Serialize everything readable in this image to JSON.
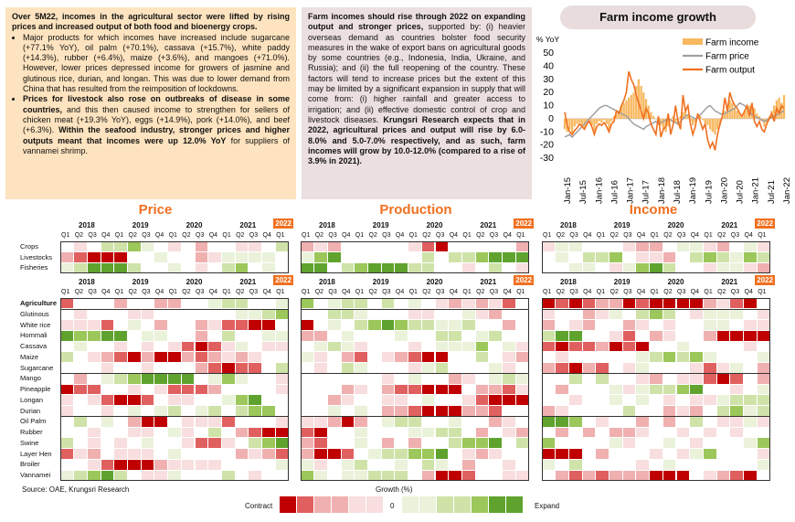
{
  "box1": {
    "intro": "Over 5M22, incomes in the agricultural sector were lifted by rising prices and increased output of both food and bioenergy crops.",
    "bullet1": "Major products for which incomes have increased include sugarcane (+77.1% YoY), oil palm (+70.1%), cassava (+15.7%), white paddy (+14.3%), rubber (+6.4%), maize (+3.6%), and mangoes (+71.0%). However, lower prices depressed income for growers of jasmine and glutinous rice, durian, and longan. This was due to lower demand from China that has resulted from the reimposition of lockdowns.",
    "bullet2_b1": "Prices for livestock also rose on outbreaks of disease in some countries,",
    "bullet2_t1": " and this then caused income to strengthen for sellers of chicken meat (+19.3% YoY), eggs (+14.9%), pork (+14.0%), and beef (+6.3%). ",
    "bullet2_b2": "Within the seafood industry, stronger prices and higher outputs meant that incomes were up 12.0% YoY",
    "bullet2_t2": " for suppliers of vannamei shrimp."
  },
  "box2": {
    "b1": "Farm incomes should rise through 2022 on expanding output and stronger prices,",
    "t1": " supported by: (i) heavier overseas demand as countries bolster food security measures in the wake of export bans on agricultural goods by some countries (e.g., Indonesia, India, Ukraine, and Russia); and (ii) the full reopening of the country. These factors will tend to increase prices but the extent of this may be limited by a significant expansion in supply that will come from: (i) higher rainfall and greater access to irrigation; and (ii) effective domestic control of crop and livestock diseases. ",
    "b2": "Krungsri Research expects that in 2022, agricultural prices and output will rise by 6.0-8.0% and 5.0-7.0% respectively, and as such, farm incomes will grow by 10.0-12.0% (compared to a rise of 3.9% in 2021)."
  },
  "chart_data": {
    "type": "line",
    "title": "Farm income growth",
    "ylabel": "% YoY",
    "ylim": [
      -30,
      50
    ],
    "yticks": [
      50,
      40,
      30,
      20,
      10,
      0,
      -10,
      -20,
      -30
    ],
    "xticks": [
      "Jan-15",
      "Jul-15",
      "Jan-16",
      "Jul-16",
      "Jan-17",
      "Jul-17",
      "Jan-18",
      "Jul-18",
      "Jan-19",
      "Jul-19",
      "Jan-20",
      "Jul-20",
      "Jan-21",
      "Jul-21",
      "Jan-22"
    ],
    "legend_position": "top-right",
    "series": [
      {
        "name": "Farm income",
        "kind": "bar",
        "color": "#f8b860",
        "values": [
          -8,
          -10,
          -8,
          -12,
          -6,
          -4,
          -3,
          -5,
          -8,
          -3,
          -2,
          -5,
          -10,
          -4,
          -2,
          -3,
          -1,
          -4,
          -8,
          -2,
          2,
          4,
          6,
          10,
          12,
          14,
          16,
          18,
          20,
          25,
          30,
          25,
          20,
          15,
          10,
          5,
          2,
          0,
          -3,
          -5,
          -8,
          -10,
          -6,
          -2,
          2,
          -3,
          -5,
          2,
          5,
          8,
          3,
          -2,
          -5,
          -3,
          0,
          2,
          -1,
          -3,
          -5,
          -8,
          -10,
          -12,
          -8,
          -5,
          2,
          6,
          10,
          14,
          12,
          8,
          6,
          4,
          2,
          6,
          8,
          10,
          12,
          8,
          4,
          2,
          -2,
          -6,
          -3,
          2,
          6,
          10,
          14,
          16,
          12,
          18
        ]
      },
      {
        "name": "Farm price",
        "kind": "line",
        "color": "#a0a0a0",
        "values": [
          -14,
          -13,
          -12,
          -14,
          -12,
          -10,
          -8,
          -6,
          -4,
          -2,
          0,
          2,
          4,
          6,
          8,
          9,
          10,
          10,
          9,
          8,
          7,
          6,
          5,
          4,
          3,
          2,
          0,
          -2,
          -4,
          -5,
          -6,
          -7,
          -8,
          -6,
          -5,
          -4,
          -3,
          -2,
          -4,
          -3,
          -2,
          -1,
          0,
          -1,
          -2,
          -3,
          -4,
          -2,
          0,
          2,
          3,
          2,
          1,
          0,
          1,
          3,
          5,
          7,
          9,
          10,
          8,
          6,
          5,
          4,
          3,
          4,
          5,
          6,
          7,
          8,
          10,
          12,
          11,
          10,
          8,
          6,
          3,
          2,
          1,
          0,
          -1,
          -2,
          -1,
          0,
          1,
          2,
          3,
          4,
          5,
          6
        ]
      },
      {
        "name": "Farm output",
        "kind": "line",
        "color": "#f07020",
        "values": [
          5,
          -5,
          -10,
          -12,
          -9,
          -7,
          -4,
          -6,
          -8,
          -4,
          -2,
          -6,
          -12,
          -6,
          -4,
          -5,
          -3,
          -6,
          -10,
          -4,
          -2,
          6,
          4,
          10,
          14,
          20,
          36,
          30,
          26,
          18,
          12,
          6,
          0,
          8,
          4,
          -4,
          -8,
          -12,
          2,
          -14,
          -8,
          -6,
          4,
          -12,
          -4,
          10,
          -2,
          -8,
          18,
          6,
          10,
          -4,
          -12,
          -6,
          4,
          -2,
          -8,
          -4,
          -16,
          -22,
          -18,
          -24,
          -12,
          -4,
          2,
          16,
          6,
          20,
          14,
          10,
          8,
          4,
          2,
          6,
          10,
          2,
          12,
          -2,
          -6,
          -2,
          -8,
          -10,
          -4,
          0,
          4,
          -2,
          8,
          4,
          10,
          8
        ]
      }
    ]
  },
  "sections": {
    "price": "Price",
    "production": "Production",
    "income": "Income"
  },
  "years": [
    "2018",
    "2019",
    "2020",
    "2021"
  ],
  "badge": "2022",
  "quarters": [
    "Q1",
    "Q2",
    "Q3",
    "Q4",
    "Q1",
    "Q2",
    "Q3",
    "Q4",
    "Q1",
    "Q2",
    "Q3",
    "Q4",
    "Q1",
    "Q2",
    "Q3",
    "Q4",
    "Q1"
  ],
  "rows_top": [
    "Crops",
    "Livestocks",
    "Fisheries"
  ],
  "rows_bottom": [
    "Agriculture",
    "Glutinous",
    "White rice",
    "Hommali",
    "Cassava",
    "Maize",
    "Sugarcane",
    "Mango",
    "Pineapple",
    "Longan",
    "Durian",
    "Oil Palm",
    "Rubber",
    "Swine",
    "Layer Hen",
    "Broiler",
    "Vannamei"
  ],
  "source": "Source: OAE, Krungsri Research",
  "legend": {
    "title": "Growth (%)",
    "contract": "Contract",
    "zero": "0",
    "expand": "Expand"
  },
  "colors": {
    "strong_neg": "#c00000",
    "neg": "#e06060",
    "mild_neg": "#f0b0b0",
    "weak_neg": "#f8dede",
    "zero": "#ffffff",
    "weak_pos": "#eaf2da",
    "mild_pos": "#cfe3a9",
    "pos": "#9cc75a",
    "strong_pos": "#5fa32e",
    "accent": "#f07020"
  }
}
